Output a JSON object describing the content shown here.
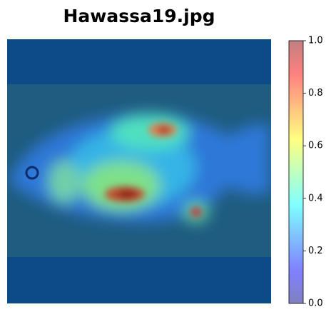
{
  "chart_data": {
    "type": "image",
    "title": "Hawassa19.jpg",
    "colormap": "jet",
    "alpha": 0.5,
    "clim": [
      0,
      1
    ],
    "cticks": [
      {
        "value": 0,
        "label": "0.0"
      },
      {
        "value": 0.2,
        "label": "0.2"
      },
      {
        "value": 0.4,
        "label": "0.4"
      },
      {
        "value": 0.6,
        "label": "0.6"
      },
      {
        "value": 0.8,
        "label": "0.8"
      },
      {
        "value": 1,
        "label": "1.0"
      }
    ]
  }
}
